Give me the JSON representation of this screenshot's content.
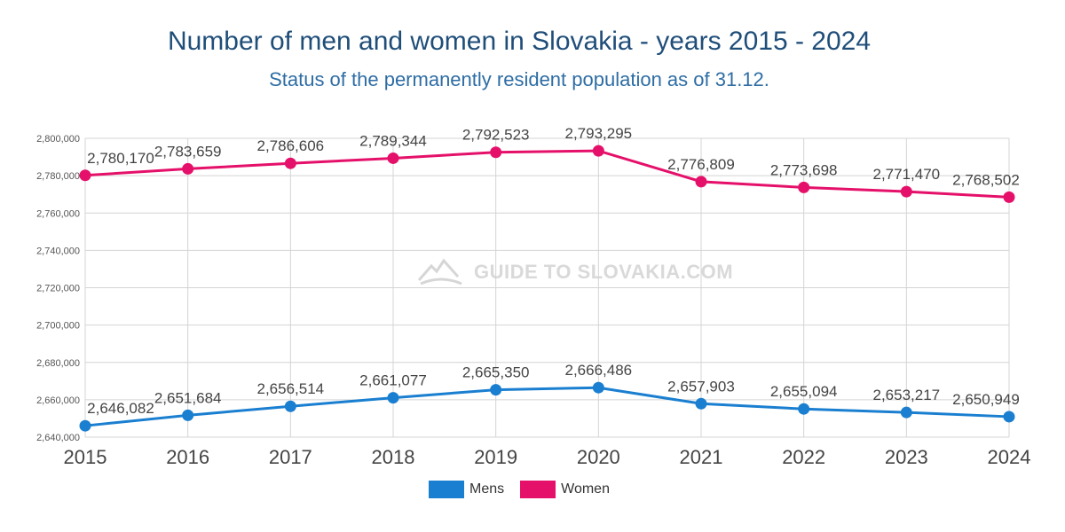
{
  "chart_data": {
    "type": "line",
    "title": "Number of men and women in Slovakia - years 2015 - 2024",
    "subtitle": "Status of the permanently resident population as of 31.12.",
    "x": [
      "2015",
      "2016",
      "2017",
      "2018",
      "2019",
      "2020",
      "2021",
      "2022",
      "2023",
      "2024"
    ],
    "ylim": [
      2640000,
      2800000
    ],
    "yticks": [
      2640000,
      2660000,
      2680000,
      2700000,
      2720000,
      2740000,
      2760000,
      2780000,
      2800000
    ],
    "ytick_labels": [
      "2,640,000",
      "2,660,000",
      "2,680,000",
      "2,700,000",
      "2,720,000",
      "2,740,000",
      "2,760,000",
      "2,780,000",
      "2,800,000"
    ],
    "grid": true,
    "legend_position": "bottom",
    "series": [
      {
        "name": "Mens",
        "color": "#1a7fd0",
        "values": [
          2646082,
          2651684,
          2656514,
          2661077,
          2665350,
          2666486,
          2657903,
          2655094,
          2653217,
          2650949
        ],
        "labels": [
          "2,646,082",
          "2,651,684",
          "2,656,514",
          "2,661,077",
          "2,665,350",
          "2,666,486",
          "2,657,903",
          "2,655,094",
          "2,653,217",
          "2,650,949"
        ]
      },
      {
        "name": "Women",
        "color": "#e5106a",
        "values": [
          2780170,
          2783659,
          2786606,
          2789344,
          2792523,
          2793295,
          2776809,
          2773698,
          2771470,
          2768502
        ],
        "labels": [
          "2,780,170",
          "2,783,659",
          "2,786,606",
          "2,789,344",
          "2,792,523",
          "2,793,295",
          "2,776,809",
          "2,773,698",
          "2,771,470",
          "2,768,502"
        ]
      }
    ]
  },
  "watermark": {
    "text": "GUIDE TO SLOVAKIA.COM",
    "icon": "mountain-icon"
  }
}
